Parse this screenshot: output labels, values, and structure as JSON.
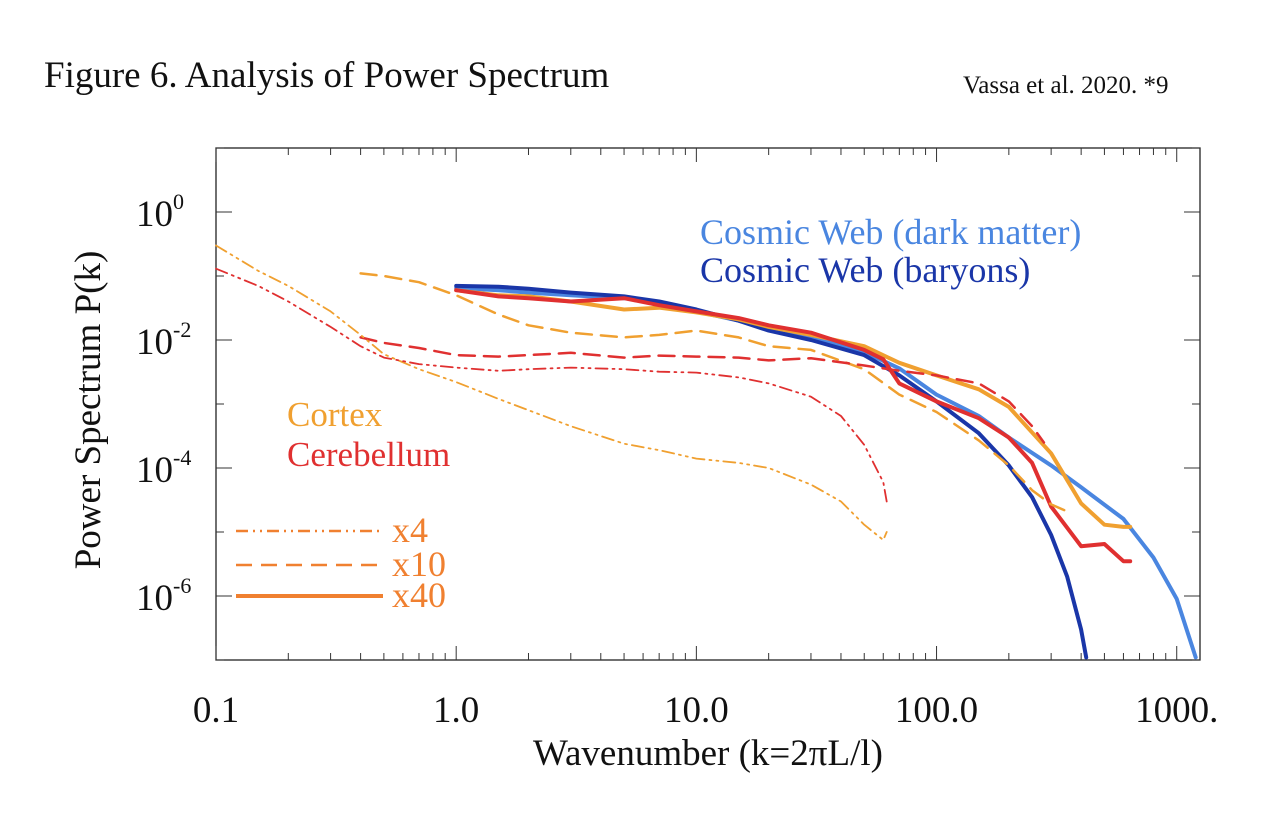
{
  "figure": {
    "title": "Figure 6. Analysis of Power Spectrum",
    "citation": "Vassa et al. 2020. *9"
  },
  "chart_data": {
    "type": "line",
    "xlabel": "Wavenumber (k=2πL/l)",
    "ylabel": "Power Spectrum P(k)",
    "x_scale": "log",
    "y_scale": "log",
    "xlim": [
      0.1,
      1250
    ],
    "ylim": [
      1e-07,
      10
    ],
    "grid": false,
    "x_ticks": [
      {
        "value": 0.1,
        "label": "0.1"
      },
      {
        "value": 1,
        "label": "1.0"
      },
      {
        "value": 10,
        "label": "10.0"
      },
      {
        "value": 100,
        "label": "100.0"
      },
      {
        "value": 1000,
        "label": "1000."
      }
    ],
    "y_ticks": [
      {
        "value": 1,
        "base": "10",
        "exp": "0"
      },
      {
        "value": 0.01,
        "base": "10",
        "exp": "-2"
      },
      {
        "value": 0.0001,
        "base": "10",
        "exp": "-4"
      },
      {
        "value": 1e-06,
        "base": "10",
        "exp": "-6"
      }
    ],
    "legend": {
      "placement": "top-right",
      "entries": [
        {
          "label": "Cosmic Web (dark matter)",
          "color": "#4a86e0"
        },
        {
          "label": "Cosmic Web (baryons)",
          "color": "#1a36a8"
        }
      ]
    },
    "annotations": [
      {
        "label": "Cortex",
        "color": "#f0a030"
      },
      {
        "label": "Cerebellum",
        "color": "#e03030"
      }
    ],
    "style_key": [
      {
        "label": "x4",
        "dash": "dash-dot-dot",
        "color": "#f08030"
      },
      {
        "label": "x10",
        "dash": "dashed",
        "color": "#f08030"
      },
      {
        "label": "x40",
        "dash": "solid",
        "color": "#f08030"
      }
    ],
    "series": [
      {
        "name": "Cosmic Web (dark matter)",
        "color": "#4a86e0",
        "width": 4,
        "dash": "solid",
        "points": [
          [
            1,
            0.065
          ],
          [
            1.5,
            0.06
          ],
          [
            2,
            0.055
          ],
          [
            3,
            0.05
          ],
          [
            5,
            0.045
          ],
          [
            7,
            0.038
          ],
          [
            10,
            0.028
          ],
          [
            15,
            0.02
          ],
          [
            20,
            0.015
          ],
          [
            30,
            0.011
          ],
          [
            50,
            0.0065
          ],
          [
            70,
            0.0036
          ],
          [
            100,
            0.0014
          ],
          [
            150,
            0.00065
          ],
          [
            200,
            0.0003
          ],
          [
            300,
            0.00011
          ],
          [
            400,
            5e-05
          ],
          [
            600,
            1.6e-05
          ],
          [
            800,
            4e-06
          ],
          [
            1000,
            9e-07
          ],
          [
            1200,
            1.1e-07
          ]
        ]
      },
      {
        "name": "Cosmic Web (baryons)",
        "color": "#1a36a8",
        "width": 4,
        "dash": "solid",
        "points": [
          [
            1,
            0.07
          ],
          [
            1.5,
            0.068
          ],
          [
            2,
            0.063
          ],
          [
            3,
            0.055
          ],
          [
            5,
            0.048
          ],
          [
            7,
            0.04
          ],
          [
            10,
            0.03
          ],
          [
            15,
            0.02
          ],
          [
            20,
            0.014
          ],
          [
            30,
            0.01
          ],
          [
            50,
            0.0058
          ],
          [
            70,
            0.0028
          ],
          [
            100,
            0.0011
          ],
          [
            150,
            0.00035
          ],
          [
            200,
            0.00011
          ],
          [
            250,
            3.5e-05
          ],
          [
            300,
            9e-06
          ],
          [
            350,
            2e-06
          ],
          [
            400,
            3e-07
          ],
          [
            420,
            1.1e-07
          ]
        ]
      },
      {
        "name": "Cortex x40",
        "color": "#f0a030",
        "width": 4,
        "dash": "solid",
        "points": [
          [
            1,
            0.06
          ],
          [
            1.5,
            0.05
          ],
          [
            2,
            0.048
          ],
          [
            3,
            0.04
          ],
          [
            5,
            0.03
          ],
          [
            7,
            0.032
          ],
          [
            10,
            0.027
          ],
          [
            15,
            0.021
          ],
          [
            20,
            0.016
          ],
          [
            30,
            0.012
          ],
          [
            50,
            0.008
          ],
          [
            70,
            0.0044
          ],
          [
            100,
            0.0028
          ],
          [
            150,
            0.0017
          ],
          [
            200,
            0.0009
          ],
          [
            300,
            0.00017
          ],
          [
            400,
            2.8e-05
          ],
          [
            500,
            1.3e-05
          ],
          [
            600,
            1.2e-05
          ],
          [
            640,
            1.2e-05
          ]
        ]
      },
      {
        "name": "Cerebellum x40",
        "color": "#e03030",
        "width": 4,
        "dash": "solid",
        "points": [
          [
            1,
            0.06
          ],
          [
            1.5,
            0.048
          ],
          [
            2,
            0.045
          ],
          [
            3,
            0.04
          ],
          [
            5,
            0.045
          ],
          [
            7,
            0.035
          ],
          [
            10,
            0.028
          ],
          [
            15,
            0.022
          ],
          [
            20,
            0.017
          ],
          [
            30,
            0.013
          ],
          [
            50,
            0.007
          ],
          [
            60,
            0.005
          ],
          [
            70,
            0.0021
          ],
          [
            100,
            0.0011
          ],
          [
            150,
            0.0006
          ],
          [
            200,
            0.0003
          ],
          [
            250,
            0.00012
          ],
          [
            300,
            2.5e-05
          ],
          [
            400,
            6e-06
          ],
          [
            500,
            6.5e-06
          ],
          [
            600,
            3.5e-06
          ],
          [
            640,
            3.5e-06
          ]
        ]
      },
      {
        "name": "Cortex x10",
        "color": "#f0a030",
        "width": 2.5,
        "dash": "dashed",
        "points": [
          [
            0.4,
            0.11
          ],
          [
            0.5,
            0.1
          ],
          [
            0.7,
            0.08
          ],
          [
            1,
            0.05
          ],
          [
            1.5,
            0.025
          ],
          [
            2,
            0.017
          ],
          [
            3,
            0.013
          ],
          [
            5,
            0.011
          ],
          [
            7,
            0.012
          ],
          [
            10,
            0.014
          ],
          [
            15,
            0.011
          ],
          [
            20,
            0.008
          ],
          [
            30,
            0.007
          ],
          [
            50,
            0.0035
          ],
          [
            70,
            0.0014
          ],
          [
            100,
            0.00075
          ],
          [
            150,
            0.00027
          ],
          [
            200,
            0.00011
          ],
          [
            250,
            4.5e-05
          ],
          [
            300,
            2.7e-05
          ],
          [
            340,
            2.2e-05
          ]
        ]
      },
      {
        "name": "Cerebellum x10",
        "color": "#e03030",
        "width": 2.5,
        "dash": "dashed",
        "points": [
          [
            0.4,
            0.011
          ],
          [
            0.5,
            0.009
          ],
          [
            0.7,
            0.0075
          ],
          [
            1,
            0.0058
          ],
          [
            1.5,
            0.0055
          ],
          [
            2,
            0.0058
          ],
          [
            3,
            0.0063
          ],
          [
            5,
            0.0053
          ],
          [
            7,
            0.0057
          ],
          [
            10,
            0.0055
          ],
          [
            15,
            0.0053
          ],
          [
            20,
            0.0048
          ],
          [
            30,
            0.0052
          ],
          [
            50,
            0.004
          ],
          [
            70,
            0.0033
          ],
          [
            100,
            0.0028
          ],
          [
            150,
            0.0021
          ],
          [
            200,
            0.0011
          ],
          [
            250,
            0.00045
          ],
          [
            280,
            0.00025
          ]
        ]
      },
      {
        "name": "Cortex x4",
        "color": "#f0a030",
        "width": 1.8,
        "dash": "dash-dot-dot",
        "points": [
          [
            0.1,
            0.3
          ],
          [
            0.15,
            0.12
          ],
          [
            0.2,
            0.07
          ],
          [
            0.3,
            0.028
          ],
          [
            0.4,
            0.012
          ],
          [
            0.5,
            0.006
          ],
          [
            0.7,
            0.0035
          ],
          [
            1,
            0.0022
          ],
          [
            1.5,
            0.0012
          ],
          [
            2,
            0.0008
          ],
          [
            3,
            0.00045
          ],
          [
            5,
            0.00024
          ],
          [
            7,
            0.00019
          ],
          [
            10,
            0.00014
          ],
          [
            15,
            0.00012
          ],
          [
            20,
            0.0001
          ],
          [
            30,
            5.5e-05
          ],
          [
            40,
            3e-05
          ],
          [
            50,
            1.3e-05
          ],
          [
            60,
            7.5e-06
          ],
          [
            62,
            1e-05
          ]
        ]
      },
      {
        "name": "Cerebellum x4",
        "color": "#e03030",
        "width": 1.8,
        "dash": "dash-dot-dot",
        "points": [
          [
            0.1,
            0.13
          ],
          [
            0.15,
            0.07
          ],
          [
            0.2,
            0.04
          ],
          [
            0.3,
            0.016
          ],
          [
            0.4,
            0.008
          ],
          [
            0.5,
            0.0053
          ],
          [
            0.7,
            0.0042
          ],
          [
            1,
            0.0037
          ],
          [
            1.5,
            0.0033
          ],
          [
            2,
            0.0035
          ],
          [
            3,
            0.0037
          ],
          [
            5,
            0.0035
          ],
          [
            7,
            0.0032
          ],
          [
            10,
            0.0031
          ],
          [
            15,
            0.0026
          ],
          [
            20,
            0.0021
          ],
          [
            30,
            0.0013
          ],
          [
            40,
            0.00065
          ],
          [
            50,
            0.00023
          ],
          [
            60,
            6e-05
          ],
          [
            62,
            3e-05
          ]
        ]
      }
    ]
  }
}
